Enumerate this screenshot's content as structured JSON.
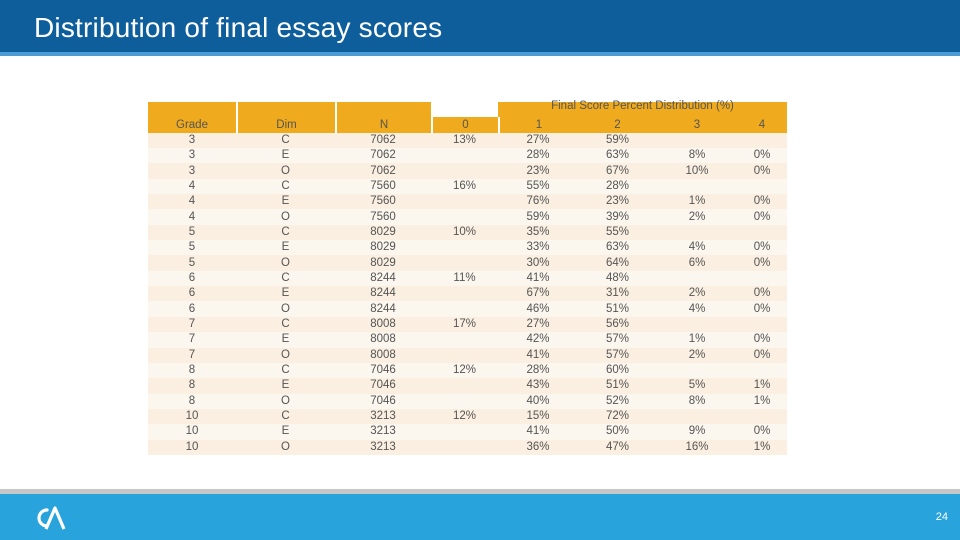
{
  "header": {
    "title": "Distribution of final essay scores"
  },
  "table": {
    "super_header": "Final Score Percent Distribution (%)",
    "columns": [
      "Grade",
      "Dim",
      "N",
      "0",
      "1",
      "2",
      "3",
      "4"
    ],
    "rows": [
      [
        "3",
        "C",
        "7062",
        "13%",
        "27%",
        "59%",
        "",
        ""
      ],
      [
        "3",
        "E",
        "7062",
        "",
        "28%",
        "63%",
        "8%",
        "0%"
      ],
      [
        "3",
        "O",
        "7062",
        "",
        "23%",
        "67%",
        "10%",
        "0%"
      ],
      [
        "4",
        "C",
        "7560",
        "16%",
        "55%",
        "28%",
        "",
        ""
      ],
      [
        "4",
        "E",
        "7560",
        "",
        "76%",
        "23%",
        "1%",
        "0%"
      ],
      [
        "4",
        "O",
        "7560",
        "",
        "59%",
        "39%",
        "2%",
        "0%"
      ],
      [
        "5",
        "C",
        "8029",
        "10%",
        "35%",
        "55%",
        "",
        ""
      ],
      [
        "5",
        "E",
        "8029",
        "",
        "33%",
        "63%",
        "4%",
        "0%"
      ],
      [
        "5",
        "O",
        "8029",
        "",
        "30%",
        "64%",
        "6%",
        "0%"
      ],
      [
        "6",
        "C",
        "8244",
        "11%",
        "41%",
        "48%",
        "",
        ""
      ],
      [
        "6",
        "E",
        "8244",
        "",
        "67%",
        "31%",
        "2%",
        "0%"
      ],
      [
        "6",
        "O",
        "8244",
        "",
        "46%",
        "51%",
        "4%",
        "0%"
      ],
      [
        "7",
        "C",
        "8008",
        "17%",
        "27%",
        "56%",
        "",
        ""
      ],
      [
        "7",
        "E",
        "8008",
        "",
        "42%",
        "57%",
        "1%",
        "0%"
      ],
      [
        "7",
        "O",
        "8008",
        "",
        "41%",
        "57%",
        "2%",
        "0%"
      ],
      [
        "8",
        "C",
        "7046",
        "12%",
        "28%",
        "60%",
        "",
        ""
      ],
      [
        "8",
        "E",
        "7046",
        "",
        "43%",
        "51%",
        "5%",
        "1%"
      ],
      [
        "8",
        "O",
        "7046",
        "",
        "40%",
        "52%",
        "8%",
        "1%"
      ],
      [
        "10",
        "C",
        "3213",
        "12%",
        "15%",
        "72%",
        "",
        ""
      ],
      [
        "10",
        "E",
        "3213",
        "",
        "41%",
        "50%",
        "9%",
        "0%"
      ],
      [
        "10",
        "O",
        "3213",
        "",
        "36%",
        "47%",
        "16%",
        "1%"
      ]
    ]
  },
  "footer": {
    "logo": "CA",
    "page_number": "24"
  },
  "colors": {
    "header": "#0f5e9c",
    "header_rule": "#4a9bd6",
    "footer": "#29a3dc",
    "gold": "#f0aa1e",
    "row_odd": "#faefe0",
    "row_even": "#fbf6ee"
  }
}
